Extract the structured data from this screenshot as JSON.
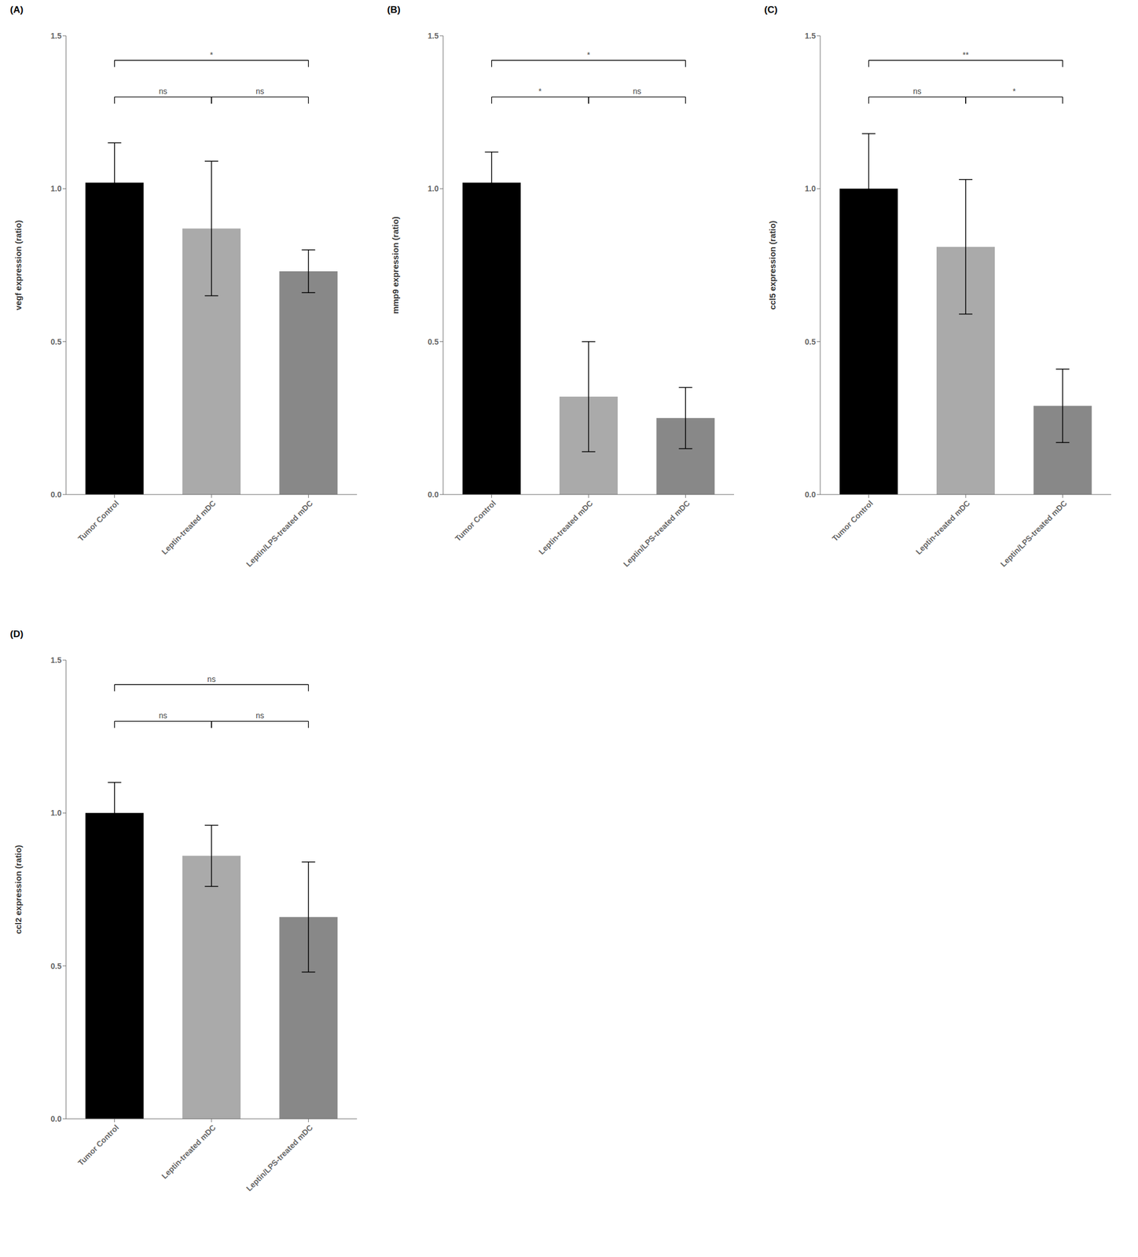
{
  "chart_data": [
    {
      "type": "bar",
      "title": "(A)",
      "ylabel": "vegf expression (ratio)",
      "categories": [
        "Tumor Control",
        "Leptin-treated mDC",
        "Leptin/LPS-treated mDC"
      ],
      "values": [
        1.02,
        0.87,
        0.73
      ],
      "errors": [
        0.13,
        0.22,
        0.07
      ],
      "colors": [
        "#000000",
        "#aaaaaa",
        "#888888"
      ],
      "ylim": [
        0,
        1.5
      ],
      "yticks": [
        {
          "value": 0,
          "label": "0.0"
        },
        0.5,
        {
          "value": 1,
          "label": "1.0"
        },
        1.5
      ],
      "grid": false,
      "annotations": [
        {
          "from": "Tumor Control",
          "to": "Leptin/LPS-treated mDC",
          "y": 1.42,
          "label": "*",
          "color": "#444444"
        },
        {
          "from": "Tumor Control",
          "to": "Leptin-treated mDC",
          "y": 1.3,
          "label": "ns",
          "color": "#444444"
        },
        {
          "from": "Leptin-treated mDC",
          "to": "Leptin/LPS-treated mDC",
          "y": 1.3,
          "label": "ns",
          "color": "#444444"
        }
      ]
    },
    {
      "type": "bar",
      "title": "(B)",
      "ylabel": "mmp9 expression (ratio)",
      "categories": [
        "Tumor Control",
        "Leptin-treated mDC",
        "Leptin/LPS-treated mDC"
      ],
      "values": [
        1.02,
        0.32,
        0.25
      ],
      "errors": [
        0.1,
        0.18,
        0.1
      ],
      "colors": [
        "#000000",
        "#aaaaaa",
        "#888888"
      ],
      "ylim": [
        0,
        1.5
      ],
      "yticks": [
        {
          "value": 0,
          "label": "0.0"
        },
        0.5,
        {
          "value": 1,
          "label": "1.0"
        },
        1.5
      ],
      "grid": false,
      "annotations": [
        {
          "from": "Tumor Control",
          "to": "Leptin/LPS-treated mDC",
          "y": 1.42,
          "label": "*",
          "color": "#444444"
        },
        {
          "from": "Tumor Control",
          "to": "Leptin-treated mDC",
          "y": 1.3,
          "label": "*",
          "color": "#444444"
        },
        {
          "from": "Leptin-treated mDC",
          "to": "Leptin/LPS-treated mDC",
          "y": 1.3,
          "label": "ns",
          "color": "#444444"
        }
      ]
    },
    {
      "type": "bar",
      "title": "(C)",
      "ylabel": "ccl5 expression (ratio)",
      "categories": [
        "Tumor Control",
        "Leptin-treated mDC",
        "Leptin/LPS-treated mDC"
      ],
      "values": [
        1.0,
        0.81,
        0.29
      ],
      "errors": [
        0.18,
        0.22,
        0.12
      ],
      "colors": [
        "#000000",
        "#aaaaaa",
        "#888888"
      ],
      "ylim": [
        0,
        1.5
      ],
      "yticks": [
        {
          "value": 0,
          "label": "0.0"
        },
        0.5,
        {
          "value": 1,
          "label": "1.0"
        },
        1.5
      ],
      "grid": false,
      "annotations": [
        {
          "from": "Tumor Control",
          "to": "Leptin/LPS-treated mDC",
          "y": 1.42,
          "label": "**",
          "color": "#444444"
        },
        {
          "from": "Tumor Control",
          "to": "Leptin-treated mDC",
          "y": 1.3,
          "label": "ns",
          "color": "#444444"
        },
        {
          "from": "Leptin-treated mDC",
          "to": "Leptin/LPS-treated mDC",
          "y": 1.3,
          "label": "*",
          "color": "#444444"
        }
      ]
    },
    {
      "type": "bar",
      "title": "(D)",
      "ylabel": "ccl2 expression (ratio)",
      "categories": [
        "Tumor Control",
        "Leptin-treated mDC",
        "Leptin/LPS-treated mDC"
      ],
      "values": [
        1.0,
        0.86,
        0.66
      ],
      "errors": [
        0.1,
        0.1,
        0.18
      ],
      "colors": [
        "#000000",
        "#aaaaaa",
        "#888888"
      ],
      "ylim": [
        0,
        1.5
      ],
      "yticks": [
        {
          "value": 0,
          "label": "0.0"
        },
        0.5,
        {
          "value": 1,
          "label": "1.0"
        },
        1.5
      ],
      "grid": false,
      "annotations": [
        {
          "from": "Tumor Control",
          "to": "Leptin/LPS-treated mDC",
          "y": 1.42,
          "label": "ns",
          "color": "#444444"
        },
        {
          "from": "Tumor Control",
          "to": "Leptin-treated mDC",
          "y": 1.3,
          "label": "ns",
          "color": "#444444"
        },
        {
          "from": "Leptin-treated mDC",
          "to": "Leptin/LPS-treated mDC",
          "y": 1.3,
          "label": "ns",
          "color": "#444444"
        }
      ]
    }
  ]
}
